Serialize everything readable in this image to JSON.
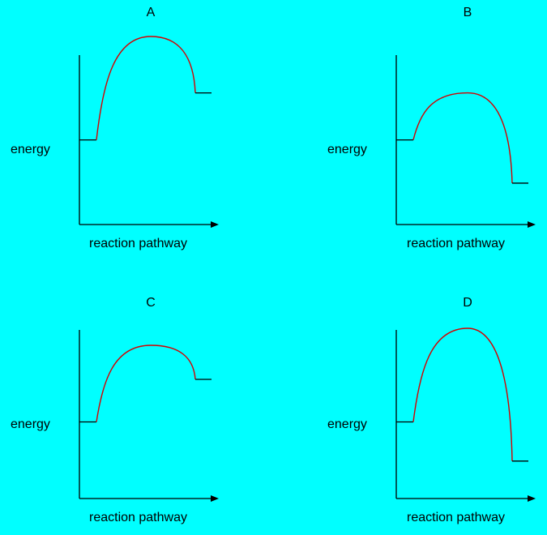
{
  "axis_labels": {
    "y": "energy",
    "x": "reaction pathway"
  },
  "panels": [
    {
      "label": "A",
      "reactant_level": 0.45,
      "peak_level": 1.0,
      "product_level": 0.7
    },
    {
      "label": "B",
      "reactant_level": 0.45,
      "peak_level": 0.7,
      "product_level": 0.22
    },
    {
      "label": "C",
      "reactant_level": 0.45,
      "peak_level": 0.9,
      "product_level": 0.7
    },
    {
      "label": "D",
      "reactant_level": 0.45,
      "peak_level": 1.0,
      "product_level": 0.22
    }
  ],
  "colors": {
    "background": "#00ffff",
    "curve": "#d40000",
    "axes": "#000000"
  }
}
